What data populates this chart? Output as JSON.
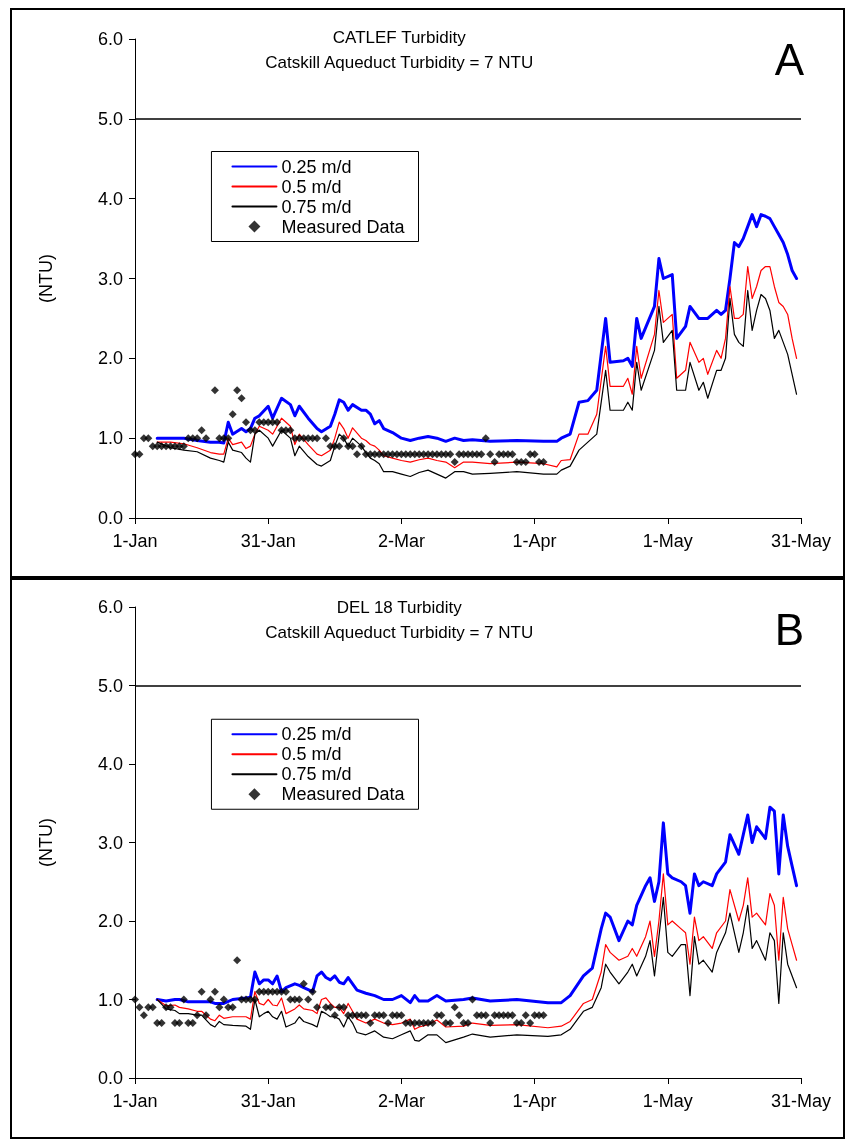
{
  "chart_data": [
    {
      "type": "line",
      "title": "CATLEF Turbidity",
      "subtitle": "Catskill Aqueduct Turbidity = 7 NTU",
      "ylabel": "(NTU)",
      "annotations": [
        "A"
      ],
      "x": [
        "--01-06",
        "--01-09",
        "--01-12",
        "--01-15",
        "--01-18",
        "--01-20",
        "--01-21",
        "--01-22",
        "--01-23",
        "--01-25",
        "--01-26",
        "--01-27",
        "--01-28",
        "--01-29",
        "--01-31",
        "--02-01",
        "--02-03",
        "--02-05",
        "--02-06",
        "--02-07",
        "--02-09",
        "--02-11",
        "--02-12",
        "--02-14",
        "--02-15",
        "--02-16",
        "--02-17",
        "--02-18",
        "--02-19",
        "--02-21",
        "--02-22",
        "--02-23",
        "--02-24",
        "--02-25",
        "--02-26",
        "--02-28",
        "--03-02",
        "--03-04",
        "--03-06",
        "--03-08",
        "--03-10",
        "--03-12",
        "--03-14",
        "--03-16",
        "--03-18",
        "--03-22",
        "--03-28",
        "--04-03",
        "--04-06",
        "--04-07",
        "--04-09",
        "--04-11",
        "--04-13",
        "--04-15",
        "--04-17",
        "--04-18",
        "--04-21",
        "--04-22",
        "--04-23",
        "--04-24",
        "--04-25",
        "--04-28",
        "--04-29",
        "--04-30",
        "--05-02",
        "--05-03",
        "--05-05",
        "--05-06",
        "--05-08",
        "--05-09",
        "--05-10",
        "--05-12",
        "--05-13",
        "--05-14",
        "--05-15",
        "--05-16",
        "--05-17",
        "--05-18",
        "--05-19",
        "--05-20",
        "--05-21",
        "--05-22",
        "--05-23",
        "--05-24",
        "--05-25",
        "--05-26",
        "--05-27",
        "--05-28",
        "--05-29",
        "--05-30"
      ],
      "xlim": [
        "--01-01",
        "--05-31"
      ],
      "xticks": [
        {
          "value": "--01-01",
          "label": "1-Jan"
        },
        {
          "value": "--01-31",
          "label": "31-Jan"
        },
        {
          "value": "--03-02",
          "label": "2-Mar"
        },
        {
          "value": "--04-01",
          "label": "1-Apr"
        },
        {
          "value": "--05-01",
          "label": "1-May"
        },
        {
          "value": "--05-31",
          "label": "31-May"
        }
      ],
      "ylim": [
        0,
        6
      ],
      "yticks": [
        {
          "value": 0,
          "label": "0.0"
        },
        {
          "value": 1,
          "label": "1.0"
        },
        {
          "value": 2,
          "label": "2.0"
        },
        {
          "value": 3,
          "label": "3.0"
        },
        {
          "value": 4,
          "label": "4.0"
        },
        {
          "value": 5,
          "label": "5.0"
        },
        {
          "value": 6,
          "label": "6.0"
        }
      ],
      "grid": false,
      "legend": "top left",
      "marker": "none",
      "line_style": "solid",
      "ref_lines": [
        {
          "axis": "y",
          "value": 5,
          "color": "#000000"
        }
      ],
      "series": [
        {
          "name": "0.25 m/d",
          "color": "#0000ff",
          "values": [
            1.0,
            1.0,
            1.0,
            0.97,
            0.95,
            0.95,
            0.94,
            1.2,
            1.05,
            1.12,
            1.08,
            1.12,
            1.25,
            1.28,
            1.4,
            1.25,
            1.5,
            1.42,
            1.28,
            1.4,
            1.25,
            1.12,
            1.08,
            1.15,
            1.3,
            1.48,
            1.45,
            1.35,
            1.42,
            1.35,
            1.35,
            1.3,
            1.18,
            1.22,
            1.12,
            1.07,
            1.0,
            0.97,
            1.0,
            1.02,
            1.0,
            0.96,
            1.0,
            0.97,
            0.98,
            0.96,
            0.97,
            0.96,
            0.96,
            1.0,
            1.05,
            1.45,
            1.47,
            1.6,
            2.5,
            1.95,
            1.97,
            2.0,
            1.9,
            2.5,
            2.25,
            2.65,
            3.25,
            3.0,
            3.05,
            2.25,
            2.4,
            2.65,
            2.5,
            2.5,
            2.5,
            2.6,
            2.55,
            2.6,
            3.0,
            3.45,
            3.4,
            3.5,
            3.65,
            3.8,
            3.65,
            3.8,
            3.78,
            3.75,
            3.65,
            3.55,
            3.45,
            3.3,
            3.1,
            3.0
          ]
        },
        {
          "name": "0.5 m/d",
          "color": "#ff0000",
          "values": [
            0.95,
            0.95,
            0.93,
            0.88,
            0.82,
            0.8,
            0.8,
            1.0,
            0.92,
            0.95,
            0.87,
            0.9,
            1.05,
            1.15,
            1.1,
            1.05,
            1.25,
            1.15,
            0.92,
            1.05,
            0.92,
            0.8,
            0.78,
            0.85,
            1.0,
            1.2,
            1.12,
            1.0,
            1.13,
            1.0,
            0.97,
            0.92,
            0.9,
            0.85,
            0.78,
            0.75,
            0.72,
            0.7,
            0.73,
            0.75,
            0.72,
            0.7,
            0.63,
            0.7,
            0.7,
            0.68,
            0.7,
            0.68,
            0.64,
            0.72,
            0.73,
            1.05,
            1.05,
            1.3,
            2.15,
            1.65,
            1.65,
            1.75,
            1.55,
            2.15,
            1.75,
            2.3,
            2.85,
            2.45,
            2.55,
            1.75,
            1.85,
            2.2,
            1.95,
            2.0,
            1.8,
            2.1,
            2.0,
            2.25,
            2.9,
            2.5,
            2.5,
            2.55,
            3.15,
            2.75,
            2.9,
            3.1,
            3.15,
            3.15,
            2.9,
            2.7,
            2.65,
            2.55,
            2.25,
            2.0
          ]
        },
        {
          "name": "0.75 m/d",
          "color": "#000000",
          "values": [
            0.95,
            0.88,
            0.85,
            0.83,
            0.75,
            0.72,
            0.7,
            0.95,
            0.85,
            0.82,
            0.75,
            0.7,
            1.05,
            1.1,
            1.0,
            0.9,
            1.1,
            1.0,
            0.78,
            0.9,
            0.77,
            0.67,
            0.65,
            0.72,
            0.9,
            1.05,
            1.0,
            0.9,
            1.0,
            0.9,
            0.82,
            0.75,
            0.72,
            0.68,
            0.58,
            0.58,
            0.55,
            0.52,
            0.57,
            0.6,
            0.55,
            0.5,
            0.58,
            0.58,
            0.55,
            0.56,
            0.58,
            0.55,
            0.55,
            0.6,
            0.65,
            0.85,
            0.95,
            1.05,
            1.85,
            1.35,
            1.35,
            1.45,
            1.35,
            1.95,
            1.6,
            2.1,
            2.65,
            2.2,
            2.35,
            1.6,
            1.6,
            1.95,
            1.6,
            1.7,
            1.5,
            1.85,
            1.85,
            2.0,
            2.75,
            2.3,
            2.2,
            2.15,
            2.85,
            2.35,
            2.6,
            2.8,
            2.75,
            2.6,
            2.25,
            2.35,
            2.2,
            2.05,
            1.8,
            1.55
          ]
        },
        {
          "name": "Measured Data",
          "type": "scatter",
          "marker": "diamond",
          "color": "#000000",
          "x": [
            "--01-01",
            "--01-02",
            "--01-03",
            "--01-04",
            "--01-05",
            "--01-06",
            "--01-07",
            "--01-08",
            "--01-09",
            "--01-10",
            "--01-11",
            "--01-12",
            "--01-13",
            "--01-14",
            "--01-15",
            "--01-16",
            "--01-17",
            "--01-19",
            "--01-20",
            "--01-21",
            "--01-22",
            "--01-23",
            "--01-24",
            "--01-25",
            "--01-26",
            "--01-27",
            "--01-28",
            "--01-29",
            "--01-30",
            "--01-31",
            "--02-01",
            "--02-02",
            "--02-03",
            "--02-04",
            "--02-05",
            "--02-06",
            "--02-07",
            "--02-08",
            "--02-09",
            "--02-10",
            "--02-11",
            "--02-13",
            "--02-14",
            "--02-15",
            "--02-16",
            "--02-17",
            "--02-18",
            "--02-19",
            "--02-20",
            "--02-21",
            "--02-22",
            "--02-23",
            "--02-24",
            "--02-25",
            "--02-26",
            "--02-27",
            "--02-28",
            "--03-01",
            "--03-02",
            "--03-03",
            "--03-04",
            "--03-05",
            "--03-06",
            "--03-07",
            "--03-08",
            "--03-09",
            "--03-10",
            "--03-11",
            "--03-12",
            "--03-13",
            "--03-14",
            "--03-15",
            "--03-16",
            "--03-17",
            "--03-18",
            "--03-19",
            "--03-20",
            "--03-21",
            "--03-22",
            "--03-23",
            "--03-24",
            "--03-25",
            "--03-26",
            "--03-27",
            "--03-28",
            "--03-29",
            "--03-30",
            "--03-31",
            "--04-01",
            "--04-02",
            "--04-03"
          ],
          "values": [
            0.8,
            0.8,
            1.0,
            1.0,
            0.9,
            0.9,
            0.9,
            0.9,
            0.9,
            0.9,
            0.9,
            0.9,
            1.0,
            1.0,
            1.0,
            1.1,
            1.0,
            1.6,
            1.0,
            1.0,
            1.0,
            1.3,
            1.6,
            1.5,
            1.2,
            1.1,
            1.1,
            1.2,
            1.2,
            1.2,
            1.2,
            1.2,
            1.1,
            1.1,
            1.1,
            1.0,
            1.0,
            1.0,
            1.0,
            1.0,
            1.0,
            1.0,
            0.9,
            0.9,
            0.9,
            1.0,
            0.9,
            0.9,
            0.8,
            0.9,
            0.8,
            0.8,
            0.8,
            0.8,
            0.8,
            0.8,
            0.8,
            0.8,
            0.8,
            0.8,
            0.8,
            0.8,
            0.8,
            0.8,
            0.8,
            0.8,
            0.8,
            0.8,
            0.8,
            0.8,
            0.7,
            0.8,
            0.8,
            0.8,
            0.8,
            0.8,
            0.8,
            1.0,
            0.8,
            0.7,
            0.8,
            0.8,
            0.8,
            0.8,
            0.7,
            0.7,
            0.7,
            0.8,
            0.8,
            0.7,
            0.7
          ]
        }
      ]
    },
    {
      "type": "line",
      "title": "DEL 18 Turbidity",
      "subtitle": "Catskill Aqueduct Turbidity = 7 NTU",
      "ylabel": "(NTU)",
      "annotations": [
        "B"
      ],
      "x": [
        "--01-06",
        "--01-08",
        "--01-10",
        "--01-11",
        "--01-13",
        "--01-15",
        "--01-16",
        "--01-18",
        "--01-19",
        "--01-20",
        "--01-21",
        "--01-23",
        "--01-26",
        "--01-27",
        "--01-28",
        "--01-29",
        "--01-30",
        "--01-31",
        "--02-01",
        "--02-02",
        "--02-03",
        "--02-04",
        "--02-06",
        "--02-07",
        "--02-08",
        "--02-10",
        "--02-11",
        "--02-12",
        "--02-13",
        "--02-14",
        "--02-15",
        "--02-16",
        "--02-17",
        "--02-18",
        "--02-19",
        "--02-20",
        "--02-22",
        "--02-24",
        "--02-26",
        "--02-28",
        "--03-02",
        "--03-04",
        "--03-05",
        "--03-06",
        "--03-08",
        "--03-10",
        "--03-12",
        "--03-16",
        "--03-18",
        "--03-22",
        "--03-28",
        "--04-04",
        "--04-07",
        "--04-09",
        "--04-12",
        "--04-14",
        "--04-16",
        "--04-17",
        "--04-18",
        "--04-20",
        "--04-22",
        "--04-23",
        "--04-24",
        "--04-26",
        "--04-27",
        "--04-28",
        "--04-29",
        "--04-30",
        "--05-01",
        "--05-02",
        "--05-04",
        "--05-05",
        "--05-06",
        "--05-07",
        "--05-08",
        "--05-09",
        "--05-11",
        "--05-12",
        "--05-14",
        "--05-15",
        "--05-17",
        "--05-18",
        "--05-19",
        "--05-20",
        "--05-21",
        "--05-23",
        "--05-24",
        "--05-25",
        "--05-26",
        "--05-27",
        "--05-28",
        "--05-29",
        "--05-30"
      ],
      "xlim": [
        "--01-01",
        "--05-31"
      ],
      "xticks": [
        {
          "value": "--01-01",
          "label": "1-Jan"
        },
        {
          "value": "--01-31",
          "label": "31-Jan"
        },
        {
          "value": "--03-02",
          "label": "2-Mar"
        },
        {
          "value": "--04-01",
          "label": "1-Apr"
        },
        {
          "value": "--05-01",
          "label": "1-May"
        },
        {
          "value": "--05-31",
          "label": "31-May"
        }
      ],
      "ylim": [
        0,
        6
      ],
      "yticks": [
        {
          "value": 0,
          "label": "0.0"
        },
        {
          "value": 1,
          "label": "1.0"
        },
        {
          "value": 2,
          "label": "2.0"
        },
        {
          "value": 3,
          "label": "3.0"
        },
        {
          "value": 4,
          "label": "4.0"
        },
        {
          "value": 5,
          "label": "5.0"
        },
        {
          "value": 6,
          "label": "6.0"
        }
      ],
      "grid": false,
      "legend": "top left",
      "marker": "none",
      "line_style": "solid",
      "ref_lines": [
        {
          "axis": "y",
          "value": 5,
          "color": "#000000"
        }
      ],
      "series": [
        {
          "name": "0.25 m/d",
          "color": "#0000ff",
          "values": [
            1.0,
            0.98,
            1.0,
            1.0,
            0.97,
            0.97,
            0.97,
            0.97,
            0.95,
            0.95,
            0.95,
            1.0,
            1.02,
            1.03,
            1.35,
            1.2,
            1.25,
            1.25,
            1.2,
            1.3,
            1.1,
            1.15,
            1.2,
            1.18,
            1.15,
            1.1,
            1.3,
            1.35,
            1.28,
            1.25,
            1.3,
            1.22,
            1.2,
            1.28,
            1.2,
            1.12,
            1.08,
            1.05,
            1.0,
            1.0,
            1.05,
            0.96,
            1.05,
            0.98,
            0.98,
            1.05,
            0.98,
            1.0,
            1.02,
            0.98,
            1.0,
            0.96,
            0.96,
            1.05,
            1.3,
            1.4,
            1.9,
            2.1,
            2.05,
            1.75,
            2.0,
            1.95,
            2.2,
            2.45,
            2.55,
            2.25,
            2.5,
            3.25,
            2.6,
            2.55,
            2.5,
            2.45,
            2.1,
            2.6,
            2.45,
            2.5,
            2.45,
            2.6,
            2.75,
            3.1,
            2.85,
            3.1,
            3.35,
            3.0,
            3.2,
            3.05,
            3.45,
            3.4,
            2.6,
            3.35,
            2.95,
            2.7,
            2.45
          ]
        },
        {
          "name": "0.5 m/d",
          "color": "#ff0000",
          "values": [
            1.0,
            0.92,
            0.93,
            0.9,
            0.88,
            0.85,
            0.85,
            0.75,
            0.73,
            0.8,
            0.76,
            0.78,
            0.78,
            0.75,
            1.1,
            0.95,
            0.93,
            1.0,
            0.93,
            0.92,
            1.02,
            0.82,
            0.88,
            0.93,
            0.88,
            0.86,
            0.82,
            1.0,
            1.02,
            0.95,
            0.9,
            0.9,
            0.82,
            0.95,
            0.85,
            0.75,
            0.7,
            0.75,
            0.7,
            0.68,
            0.7,
            0.75,
            0.62,
            0.65,
            0.68,
            0.74,
            0.65,
            0.66,
            0.7,
            0.67,
            0.68,
            0.64,
            0.66,
            0.72,
            0.95,
            1.0,
            1.35,
            1.7,
            1.6,
            1.5,
            1.55,
            1.65,
            1.55,
            1.8,
            2.0,
            1.55,
            2.0,
            2.6,
            1.95,
            2.0,
            1.9,
            1.85,
            1.45,
            2.05,
            1.75,
            1.8,
            1.65,
            1.85,
            2.0,
            2.4,
            2.0,
            2.2,
            2.55,
            2.05,
            2.1,
            1.95,
            2.35,
            2.2,
            1.5,
            2.3,
            1.9,
            1.7,
            1.5
          ]
        },
        {
          "name": "0.75 m/d",
          "color": "#000000",
          "values": [
            1.0,
            0.88,
            0.86,
            0.82,
            0.82,
            0.8,
            0.8,
            0.68,
            0.65,
            0.72,
            0.68,
            0.67,
            0.66,
            0.62,
            1.0,
            0.78,
            0.82,
            0.85,
            0.78,
            0.75,
            0.85,
            0.65,
            0.7,
            0.78,
            0.72,
            0.68,
            0.65,
            0.85,
            0.82,
            0.78,
            0.78,
            0.75,
            0.65,
            0.78,
            0.7,
            0.58,
            0.55,
            0.6,
            0.52,
            0.5,
            0.55,
            0.6,
            0.48,
            0.47,
            0.55,
            0.55,
            0.45,
            0.52,
            0.56,
            0.52,
            0.55,
            0.53,
            0.55,
            0.62,
            0.85,
            0.9,
            1.15,
            1.45,
            1.35,
            1.2,
            1.35,
            1.45,
            1.3,
            1.55,
            1.75,
            1.3,
            1.8,
            2.3,
            1.6,
            1.55,
            1.7,
            1.7,
            1.05,
            1.8,
            1.45,
            1.5,
            1.35,
            1.6,
            1.85,
            2.1,
            1.6,
            1.85,
            2.2,
            1.65,
            1.75,
            1.5,
            1.85,
            1.75,
            0.95,
            1.85,
            1.45,
            1.3,
            1.15
          ]
        },
        {
          "name": "Measured Data",
          "type": "scatter",
          "marker": "diamond",
          "color": "#000000",
          "x": [
            "--01-01",
            "--01-02",
            "--01-03",
            "--01-04",
            "--01-05",
            "--01-06",
            "--01-07",
            "--01-08",
            "--01-09",
            "--01-10",
            "--01-11",
            "--01-12",
            "--01-13",
            "--01-14",
            "--01-15",
            "--01-16",
            "--01-17",
            "--01-18",
            "--01-19",
            "--01-20",
            "--01-21",
            "--01-22",
            "--01-23",
            "--01-24",
            "--01-25",
            "--01-26",
            "--01-27",
            "--01-28",
            "--01-29",
            "--01-30",
            "--01-31",
            "--02-01",
            "--02-02",
            "--02-03",
            "--02-04",
            "--02-05",
            "--02-06",
            "--02-07",
            "--02-08",
            "--02-09",
            "--02-10",
            "--02-11",
            "--02-13",
            "--02-14",
            "--02-15",
            "--02-16",
            "--02-17",
            "--02-18",
            "--02-19",
            "--02-20",
            "--02-21",
            "--02-22",
            "--02-23",
            "--02-24",
            "--02-25",
            "--02-26",
            "--02-27",
            "--02-28",
            "--03-01",
            "--03-02",
            "--03-03",
            "--03-04",
            "--03-05",
            "--03-06",
            "--03-07",
            "--03-08",
            "--03-09",
            "--03-10",
            "--03-11",
            "--03-12",
            "--03-13",
            "--03-14",
            "--03-15",
            "--03-16",
            "--03-17",
            "--03-18",
            "--03-19",
            "--03-20",
            "--03-21",
            "--03-22",
            "--03-23",
            "--03-24",
            "--03-25",
            "--03-26",
            "--03-27",
            "--03-28",
            "--03-29",
            "--03-30",
            "--03-31",
            "--04-01",
            "--04-02",
            "--04-03"
          ],
          "values": [
            1.0,
            0.9,
            0.8,
            0.9,
            0.9,
            0.7,
            0.7,
            0.9,
            0.9,
            0.7,
            0.7,
            1.0,
            0.7,
            0.7,
            0.8,
            1.1,
            0.8,
            1.0,
            1.1,
            0.9,
            1.0,
            0.9,
            0.9,
            1.5,
            1.0,
            1.0,
            1.0,
            1.0,
            1.1,
            1.1,
            1.1,
            1.1,
            1.1,
            1.1,
            1.1,
            1.0,
            1.0,
            1.0,
            1.2,
            1.0,
            1.1,
            0.9,
            0.9,
            0.9,
            0.8,
            0.9,
            0.9,
            0.8,
            0.8,
            0.8,
            0.8,
            0.8,
            0.7,
            0.8,
            0.8,
            0.8,
            0.7,
            0.8,
            0.8,
            0.8,
            0.7,
            0.7,
            0.7,
            0.7,
            0.7,
            0.7,
            0.7,
            0.8,
            0.8,
            0.7,
            0.7,
            0.9,
            0.8,
            0.7,
            0.7,
            1.0,
            0.8,
            0.8,
            0.8,
            0.7,
            0.8,
            0.8,
            0.8,
            0.8,
            0.8,
            0.7,
            0.7,
            0.8,
            0.7,
            0.8,
            0.8,
            0.8
          ]
        }
      ]
    }
  ]
}
